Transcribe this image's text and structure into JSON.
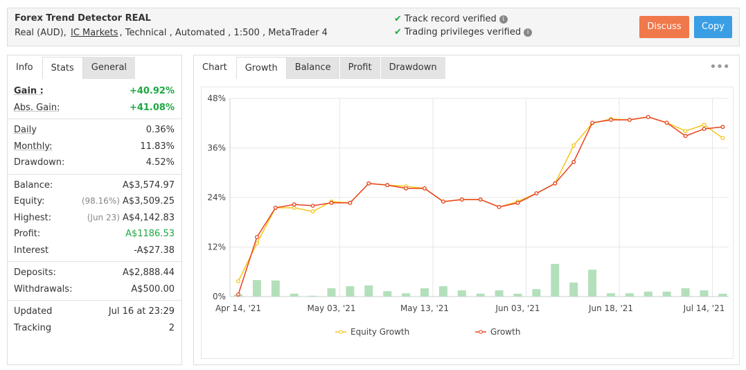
{
  "header": {
    "title": "Forex Trend Detector REAL",
    "subtitle": [
      "Real (AUD),",
      "IC Markets",
      ", Technical , Automated , 1:500 , MetaTrader 4"
    ],
    "verified": [
      "Track record verified",
      "Trading privileges verified"
    ],
    "buttons": [
      {
        "label": "Discuss",
        "color": "#f0784b"
      },
      {
        "label": "Copy",
        "color": "#3a9ee4"
      }
    ]
  },
  "stats_panel": {
    "tabs": [
      "Info",
      "Stats",
      "General"
    ],
    "active_tab": 1,
    "groups": [
      [
        {
          "label": "Gain :",
          "value": "+40.92%",
          "color": "#1ea742",
          "underline": true,
          "bold": true
        },
        {
          "label": "Abs. Gain:",
          "value": "+41.08%",
          "color": "#1ea742",
          "underline": true
        }
      ],
      [
        {
          "label": "Daily",
          "value": "0.36%",
          "underline": true
        },
        {
          "label": "Monthly:",
          "value": "11.83%",
          "underline": true
        },
        {
          "label": "Drawdown:",
          "value": "4.52%"
        }
      ],
      [
        {
          "label": "Balance:",
          "value": "A$3,574.97"
        },
        {
          "label": "Equity:",
          "note": "(98.16%)",
          "value": "A$3,509.25"
        },
        {
          "label": "Highest:",
          "note": "(Jun 23)",
          "value": "A$4,142.83"
        },
        {
          "label": "Profit:",
          "value": "A$1186.53",
          "color": "#1ea742"
        },
        {
          "label": "Interest",
          "value": "-A$27.38"
        }
      ],
      [
        {
          "label": "Deposits:",
          "value": "A$2,888.44"
        },
        {
          "label": "Withdrawals:",
          "value": "A$500.00"
        }
      ],
      [
        {
          "label": "Updated",
          "value": "Jul 16 at 23:29"
        },
        {
          "label": "Tracking",
          "value": "2"
        }
      ]
    ]
  },
  "chart_panel": {
    "tabs": [
      "Chart",
      "Growth",
      "Balance",
      "Profit",
      "Drawdown"
    ],
    "active_tab": 1
  },
  "chart_data": {
    "type": "line",
    "categories": [
      "Apr 14, '21",
      null,
      null,
      null,
      null,
      "May 03, '21",
      null,
      null,
      null,
      null,
      "May 13, '21",
      null,
      null,
      null,
      null,
      "Jun 03, '21",
      null,
      null,
      null,
      null,
      "Jun 18, '21",
      null,
      null,
      null,
      null,
      "Jul 14, '21",
      null
    ],
    "series": [
      {
        "name": "Equity Growth",
        "color": "#f5c518",
        "values": [
          3.7,
          12.9,
          21.5,
          21.5,
          20.6,
          23.0,
          22.7,
          27.4,
          27.0,
          26.7,
          26.2,
          23.0,
          23.5,
          23.5,
          21.7,
          23.0,
          25.0,
          27.4,
          36.6,
          42.0,
          43.0,
          42.8,
          43.5,
          42.1,
          40.1,
          41.6,
          38.4
        ]
      },
      {
        "name": "Growth",
        "color": "#e8401c",
        "values": [
          0.5,
          14.4,
          21.5,
          22.3,
          22.0,
          22.7,
          22.7,
          27.4,
          27.0,
          26.2,
          26.2,
          23.0,
          23.5,
          23.5,
          21.7,
          22.7,
          25.0,
          27.4,
          32.6,
          42.1,
          42.8,
          42.8,
          43.5,
          42.1,
          38.9,
          40.6,
          41.1
        ]
      }
    ],
    "bars": {
      "color": "#b3e0bb",
      "values": [
        0.5,
        4.0,
        3.9,
        0.7,
        0.2,
        2.0,
        2.5,
        2.7,
        1.3,
        0.8,
        2.0,
        2.5,
        1.5,
        0.7,
        1.5,
        0.7,
        1.8,
        7.9,
        3.4,
        6.5,
        0.8,
        0.8,
        1.2,
        1.2,
        2.0,
        1.5,
        0.7
      ]
    },
    "ylim": [
      0,
      48
    ],
    "yticks": [
      {
        "value": 0,
        "label": "0%"
      },
      {
        "value": 12,
        "label": "12%"
      },
      {
        "value": 24,
        "label": "24%"
      },
      {
        "value": 36,
        "label": "36%"
      },
      {
        "value": 48,
        "label": "48%"
      }
    ],
    "grid": true
  }
}
